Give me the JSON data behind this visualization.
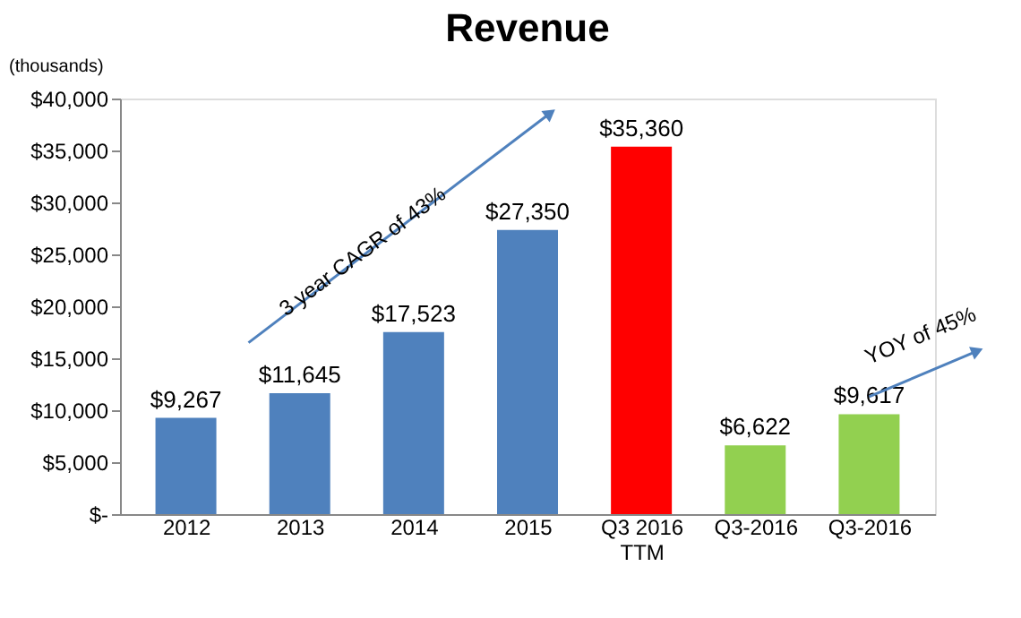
{
  "chart_data": {
    "type": "bar",
    "title": "Revenue",
    "ylabel": "(thousands)",
    "categories": [
      "2012",
      "2013",
      "2014",
      "2015",
      "Q3 2016\nTTM",
      "Q3-2016",
      "Q3-2016"
    ],
    "values": [
      9267,
      11645,
      17523,
      27350,
      35360,
      6622,
      9617
    ],
    "colors": [
      "#4f81bd",
      "#4f81bd",
      "#4f81bd",
      "#4f81bd",
      "#ff0000",
      "#92d050",
      "#92d050"
    ],
    "ylim": [
      0,
      40000
    ],
    "yticks": [
      {
        "value": 0,
        "label": "$-"
      },
      {
        "value": 5000,
        "label": "$5,000"
      },
      {
        "value": 10000,
        "label": "$10,000"
      },
      {
        "value": 15000,
        "label": "$15,000"
      },
      {
        "value": 20000,
        "label": "$20,000"
      },
      {
        "value": 25000,
        "label": "$25,000"
      },
      {
        "value": 30000,
        "label": "$30,000"
      },
      {
        "value": 35000,
        "label": "$35,000"
      },
      {
        "value": 40000,
        "label": "$40,000"
      }
    ],
    "value_labels": [
      "$9,267",
      "$11,645",
      "$17,523",
      "$27,350",
      "$35,360",
      "$6,622",
      "$9,617"
    ],
    "grid": false,
    "annotations": [
      "3 year CAGR of 43%",
      "YOY of 45%"
    ]
  }
}
